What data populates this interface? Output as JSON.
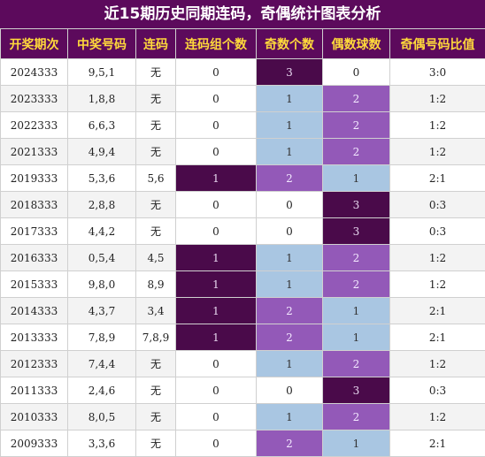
{
  "title": "近15期历史同期连码，奇偶统计图表分析",
  "headers": [
    "开奖期次",
    "中奖号码",
    "连码",
    "连码组个数",
    "奇数个数",
    "偶数球数",
    "奇偶号码比值"
  ],
  "rows": [
    {
      "period": "2024333",
      "nums": "9,5,1",
      "lian": "无",
      "lianCount": "0",
      "odd": "3",
      "even": "0",
      "ratio": "3:0"
    },
    {
      "period": "2023333",
      "nums": "1,8,8",
      "lian": "无",
      "lianCount": "0",
      "odd": "1",
      "even": "2",
      "ratio": "1:2"
    },
    {
      "period": "2022333",
      "nums": "6,6,3",
      "lian": "无",
      "lianCount": "0",
      "odd": "1",
      "even": "2",
      "ratio": "1:2"
    },
    {
      "period": "2021333",
      "nums": "4,9,4",
      "lian": "无",
      "lianCount": "0",
      "odd": "1",
      "even": "2",
      "ratio": "1:2"
    },
    {
      "period": "2019333",
      "nums": "5,3,6",
      "lian": "5,6",
      "lianCount": "1",
      "odd": "2",
      "even": "1",
      "ratio": "2:1"
    },
    {
      "period": "2018333",
      "nums": "2,8,8",
      "lian": "无",
      "lianCount": "0",
      "odd": "0",
      "even": "3",
      "ratio": "0:3"
    },
    {
      "period": "2017333",
      "nums": "4,4,2",
      "lian": "无",
      "lianCount": "0",
      "odd": "0",
      "even": "3",
      "ratio": "0:3"
    },
    {
      "period": "2016333",
      "nums": "0,5,4",
      "lian": "4,5",
      "lianCount": "1",
      "odd": "1",
      "even": "2",
      "ratio": "1:2"
    },
    {
      "period": "2015333",
      "nums": "9,8,0",
      "lian": "8,9",
      "lianCount": "1",
      "odd": "1",
      "even": "2",
      "ratio": "1:2"
    },
    {
      "period": "2014333",
      "nums": "4,3,7",
      "lian": "3,4",
      "lianCount": "1",
      "odd": "2",
      "even": "1",
      "ratio": "2:1"
    },
    {
      "period": "2013333",
      "nums": "7,8,9",
      "lian": "7,8,9",
      "lianCount": "1",
      "odd": "2",
      "even": "1",
      "ratio": "2:1"
    },
    {
      "period": "2012333",
      "nums": "7,4,4",
      "lian": "无",
      "lianCount": "0",
      "odd": "1",
      "even": "2",
      "ratio": "1:2"
    },
    {
      "period": "2011333",
      "nums": "2,4,6",
      "lian": "无",
      "lianCount": "0",
      "odd": "0",
      "even": "3",
      "ratio": "0:3"
    },
    {
      "period": "2010333",
      "nums": "8,0,5",
      "lian": "无",
      "lianCount": "0",
      "odd": "1",
      "even": "2",
      "ratio": "1:2"
    },
    {
      "period": "2009333",
      "nums": "3,3,6",
      "lian": "无",
      "lianCount": "0",
      "odd": "2",
      "even": "1",
      "ratio": "2:1"
    }
  ],
  "colors": {
    "header_bg": "#5c0a5c",
    "header_text": "#ffd93b",
    "cell_dark": "#4a0a4a",
    "cell_purple": "#9359b8",
    "cell_blue": "#a9c6e2"
  }
}
